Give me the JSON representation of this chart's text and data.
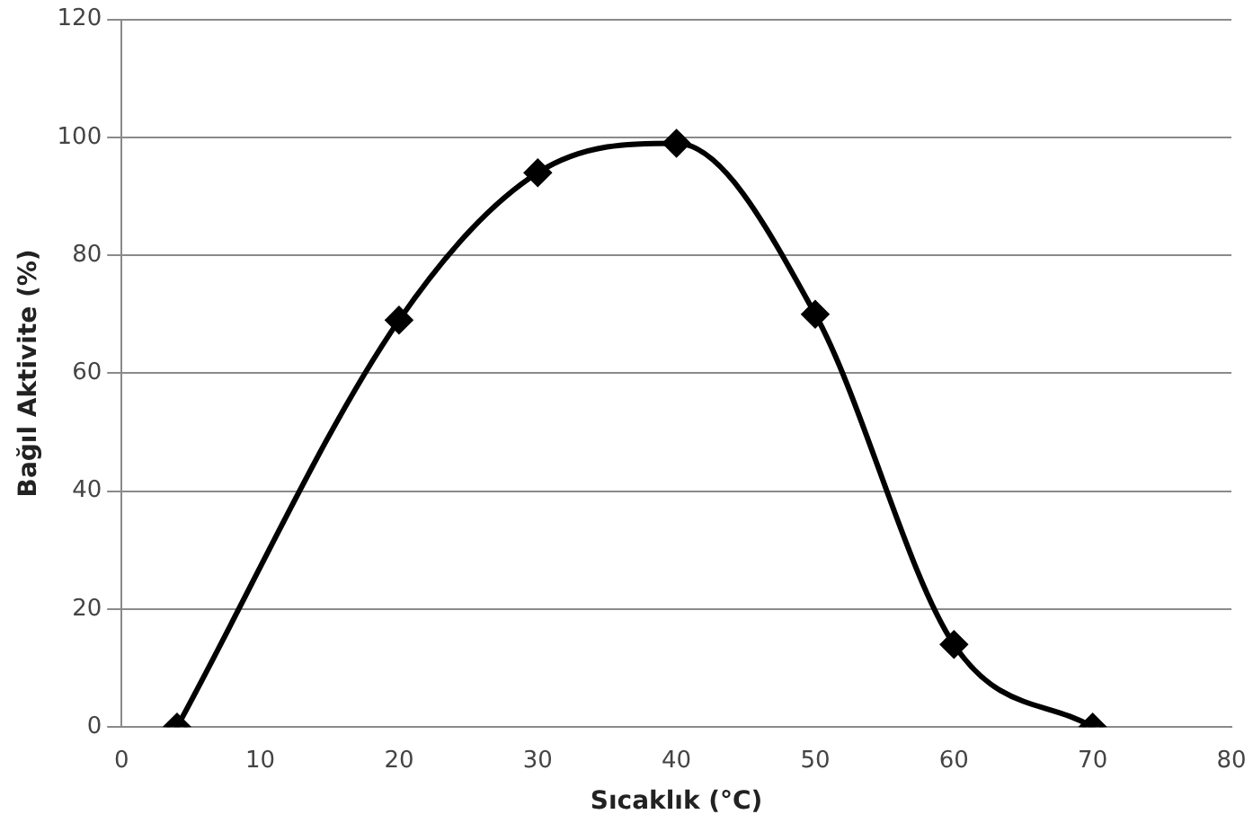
{
  "chart_data": {
    "type": "line",
    "xlabel": "Sıcaklık (°C)",
    "ylabel": "Bağıl Aktivite (%)",
    "x": [
      4,
      20,
      30,
      40,
      50,
      60,
      70
    ],
    "series": [
      {
        "color": "#000000",
        "values": [
          0,
          69,
          94,
          99,
          70,
          14,
          0
        ]
      }
    ],
    "xlim": [
      0,
      80
    ],
    "xticks": [
      0,
      10,
      20,
      30,
      40,
      50,
      60,
      70,
      80
    ],
    "ylim": [
      0,
      120
    ],
    "yticks": [
      0,
      20,
      40,
      60,
      80,
      100,
      120
    ],
    "grid": "y",
    "legend": false,
    "marker": "diamond",
    "line_style": "solid"
  }
}
